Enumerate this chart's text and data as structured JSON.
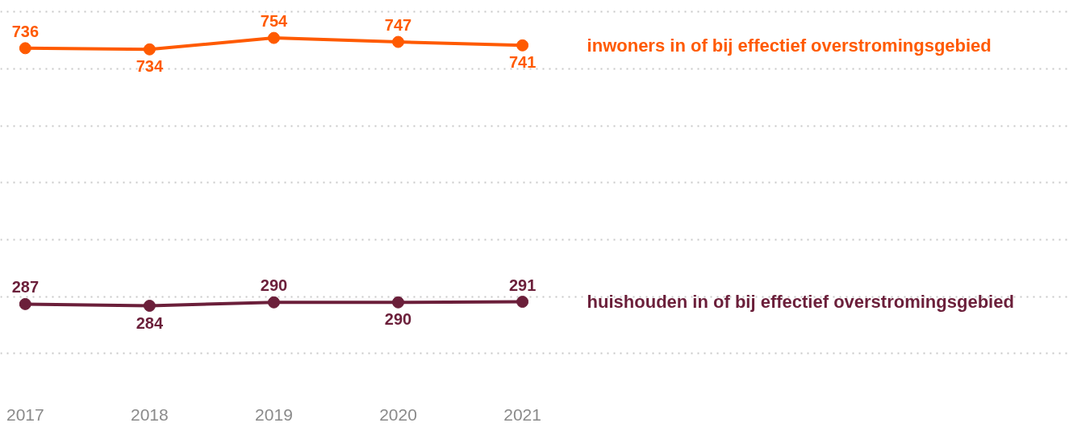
{
  "chart_data": {
    "type": "line",
    "x": [
      2017,
      2018,
      2019,
      2020,
      2021
    ],
    "xlim": [
      2016.8,
      2025.4
    ],
    "xticks": [
      2017,
      2018,
      2019,
      2020,
      2021
    ],
    "yticks": [
      {
        "value": 200,
        "label": null
      },
      {
        "value": 300,
        "label": null
      },
      {
        "value": 400,
        "label": null
      },
      {
        "value": 500,
        "label": null
      },
      {
        "value": 600,
        "label": null
      },
      {
        "value": 700,
        "label": null
      },
      {
        "value": 800,
        "label": null
      }
    ],
    "series": [
      {
        "name": "inwoners in of bij effectief overstromingsgebied",
        "color": "#ff5a00",
        "values": [
          736,
          734,
          754,
          747,
          741
        ]
      },
      {
        "name": "huishouden in of bij effectief overstromingsgebied",
        "color": "#6b1f3a",
        "values": [
          287,
          284,
          290,
          290,
          291
        ]
      }
    ],
    "data_labels": true,
    "grid": "y",
    "marker": "circle",
    "line_style": "solid",
    "tick_labels": "x"
  }
}
